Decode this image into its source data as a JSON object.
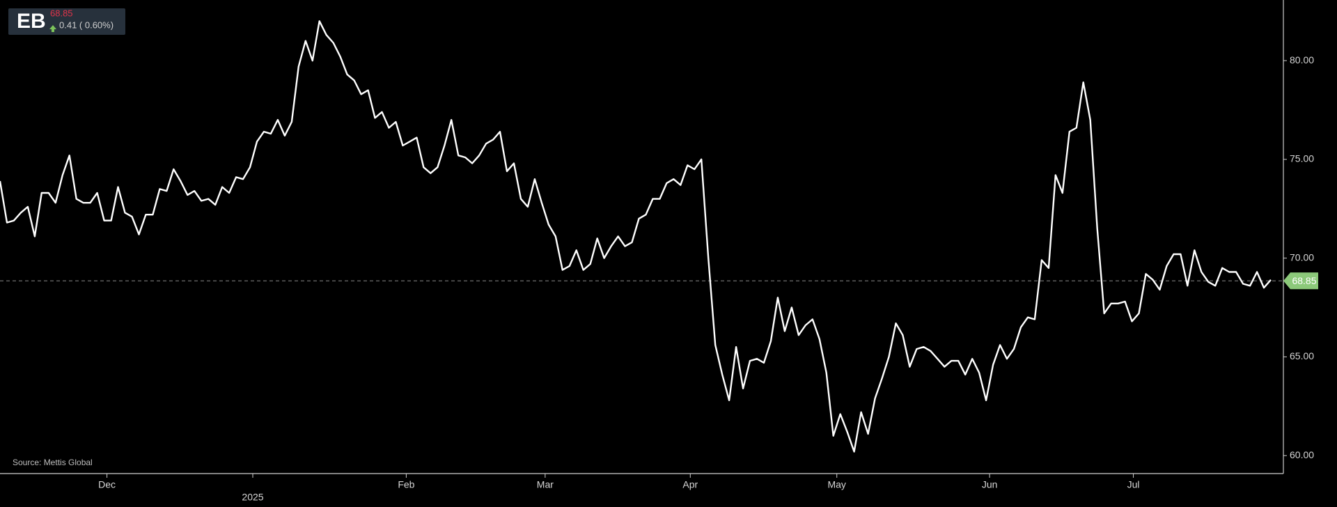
{
  "badge": {
    "symbol": "EB",
    "change": "0.41 ( 0.60%)"
  },
  "source": "Source: Mettis Global",
  "chart_data": {
    "type": "line",
    "color": "#ffffff",
    "last_price": 68.85,
    "last_price_color": "#8cc97a",
    "values": [
      73.9,
      71.8,
      71.9,
      72.3,
      72.6,
      71.1,
      73.3,
      73.3,
      72.8,
      74.2,
      75.2,
      73.0,
      72.8,
      72.8,
      73.3,
      71.9,
      71.9,
      73.6,
      72.3,
      72.1,
      71.2,
      72.2,
      72.2,
      73.5,
      73.4,
      74.5,
      73.9,
      73.2,
      73.4,
      72.9,
      73.0,
      72.7,
      73.6,
      73.3,
      74.1,
      74.0,
      74.6,
      75.9,
      76.4,
      76.3,
      77.0,
      76.2,
      76.9,
      79.7,
      81.0,
      80.0,
      82.0,
      81.3,
      80.9,
      80.2,
      79.3,
      79.0,
      78.3,
      78.5,
      77.1,
      77.4,
      76.6,
      76.9,
      75.7,
      75.9,
      76.1,
      74.6,
      74.3,
      74.6,
      75.7,
      77.0,
      75.2,
      75.1,
      74.8,
      75.2,
      75.8,
      76.0,
      76.4,
      74.4,
      74.8,
      73.0,
      72.6,
      74.0,
      72.8,
      71.7,
      71.1,
      69.4,
      69.6,
      70.4,
      69.4,
      69.7,
      71.0,
      70.0,
      70.6,
      71.1,
      70.6,
      70.8,
      72.0,
      72.2,
      73.0,
      73.0,
      73.8,
      74.0,
      73.7,
      74.7,
      74.5,
      75.0,
      70.0,
      65.6,
      64.1,
      62.8,
      65.5,
      63.4,
      64.8,
      64.9,
      64.7,
      65.8,
      68.0,
      66.3,
      67.5,
      66.1,
      66.6,
      66.9,
      65.9,
      64.2,
      61.0,
      62.1,
      61.2,
      60.2,
      62.2,
      61.1,
      62.9,
      63.9,
      65.0,
      66.7,
      66.1,
      64.5,
      65.4,
      65.5,
      65.3,
      64.9,
      64.5,
      64.8,
      64.8,
      64.1,
      64.9,
      64.2,
      62.8,
      64.6,
      65.6,
      64.9,
      65.4,
      66.5,
      67.0,
      66.9,
      69.9,
      69.5,
      74.2,
      73.3,
      76.4,
      76.6,
      78.9,
      77.0,
      71.5,
      67.2,
      67.7,
      67.7,
      67.8,
      66.8,
      67.2,
      69.2,
      68.9,
      68.4,
      69.6,
      70.2,
      70.2,
      68.6,
      70.4,
      69.3,
      68.8,
      68.6,
      69.5,
      69.3,
      69.3,
      68.7,
      68.6,
      69.3,
      68.5,
      68.9
    ],
    "xlim": [
      0,
      183
    ],
    "xticks": [
      {
        "value": 15.4,
        "label": "Dec"
      },
      {
        "value": 36.4,
        "label": "2025"
      },
      {
        "value": 58.5,
        "label": "Feb"
      },
      {
        "value": 78.5,
        "label": "Mar"
      },
      {
        "value": 99.4,
        "label": "Apr"
      },
      {
        "value": 120.5,
        "label": "May"
      },
      {
        "value": 142.5,
        "label": "Jun"
      },
      {
        "value": 163.2,
        "label": "Jul"
      }
    ],
    "ylim": [
      59.09,
      83.07
    ],
    "yticks": [
      {
        "value": 60,
        "label": "60.00"
      },
      {
        "value": 65,
        "label": "65.00"
      },
      {
        "value": 70,
        "label": "70.00"
      },
      {
        "value": 75,
        "label": "75.00"
      },
      {
        "value": 80,
        "label": "80.00"
      }
    ]
  }
}
